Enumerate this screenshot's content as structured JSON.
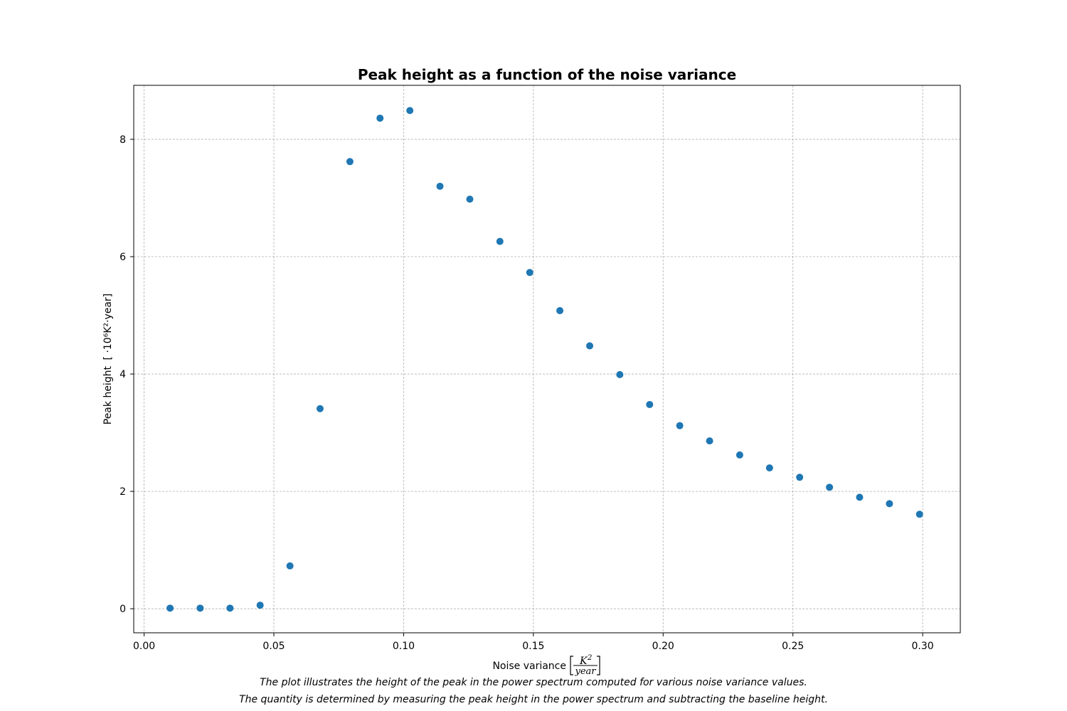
{
  "chart_data": {
    "type": "scatter",
    "title": "Peak height as a function of the noise variance",
    "xlabel": "Noise variance",
    "xlabel_unit_numerator": "K",
    "xlabel_unit_power": "2",
    "xlabel_unit_denominator": "year",
    "ylabel": "Peak height",
    "ylabel_unit": "[ ·10⁶K²·year]",
    "xlim": [
      -0.004,
      0.3145
    ],
    "ylim": [
      -0.41,
      8.92
    ],
    "xticks": [
      0.0,
      0.05,
      0.1,
      0.15,
      0.2,
      0.25,
      0.3
    ],
    "xtick_labels": [
      "0.00",
      "0.05",
      "0.10",
      "0.15",
      "0.20",
      "0.25",
      "0.30"
    ],
    "yticks": [
      0,
      2,
      4,
      6,
      8
    ],
    "ytick_labels": [
      "0",
      "2",
      "4",
      "6",
      "8"
    ],
    "grid": true,
    "marker_color": "#1f77b4",
    "x": [
      0.01,
      0.0216,
      0.0331,
      0.0447,
      0.0562,
      0.0678,
      0.0793,
      0.0909,
      0.1024,
      0.114,
      0.1255,
      0.1371,
      0.1486,
      0.1602,
      0.1717,
      0.1833,
      0.1948,
      0.2064,
      0.2179,
      0.2295,
      0.241,
      0.2526,
      0.2641,
      0.2757,
      0.2872,
      0.2988
    ],
    "y": [
      0.01,
      0.01,
      0.01,
      0.06,
      0.73,
      3.41,
      7.62,
      8.36,
      8.49,
      7.2,
      6.98,
      6.26,
      5.73,
      5.08,
      4.48,
      3.99,
      3.48,
      3.12,
      2.86,
      2.62,
      2.4,
      2.24,
      2.07,
      1.9,
      1.79,
      1.61
    ]
  },
  "captions": [
    "The plot illustrates the height of the peak in the power spectrum computed for various noise variance values.",
    "The quantity is determined by measuring the peak height in the power spectrum and subtracting the baseline height."
  ]
}
